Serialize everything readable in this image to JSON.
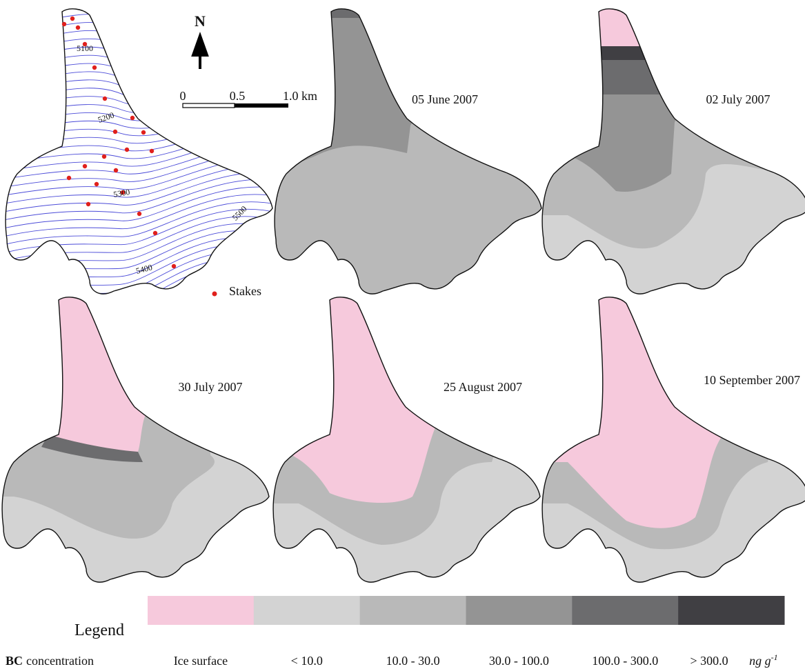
{
  "map": {
    "north": "N",
    "scale_labels": [
      "0",
      "0.5",
      "1.0 km"
    ],
    "contour_labels": [
      "5100",
      "5200",
      "5300",
      "5400",
      "5500"
    ],
    "stakes_label": "Stakes"
  },
  "panels": [
    {
      "date": "05 June 2007"
    },
    {
      "date": "02 July 2007"
    },
    {
      "date": "30 July 2007"
    },
    {
      "date": "25 August 2007"
    },
    {
      "date": "10 September 2007"
    }
  ],
  "legend": {
    "title": "Legend",
    "caption_bold": "BC",
    "caption": "concentration",
    "unit": "ng g",
    "unit_exponent": "-1",
    "classes": [
      {
        "label": "Ice surface",
        "color": "#f6c9dc"
      },
      {
        "label": "< 10.0",
        "color": "#d3d3d3"
      },
      {
        "label": "10.0 - 30.0",
        "color": "#b9b9b9"
      },
      {
        "label": "30.0 - 100.0",
        "color": "#949494"
      },
      {
        "label": "100.0 - 300.0",
        "color": "#6c6c6e"
      },
      {
        "label": "> 300.0",
        "color": "#403f43"
      }
    ]
  }
}
